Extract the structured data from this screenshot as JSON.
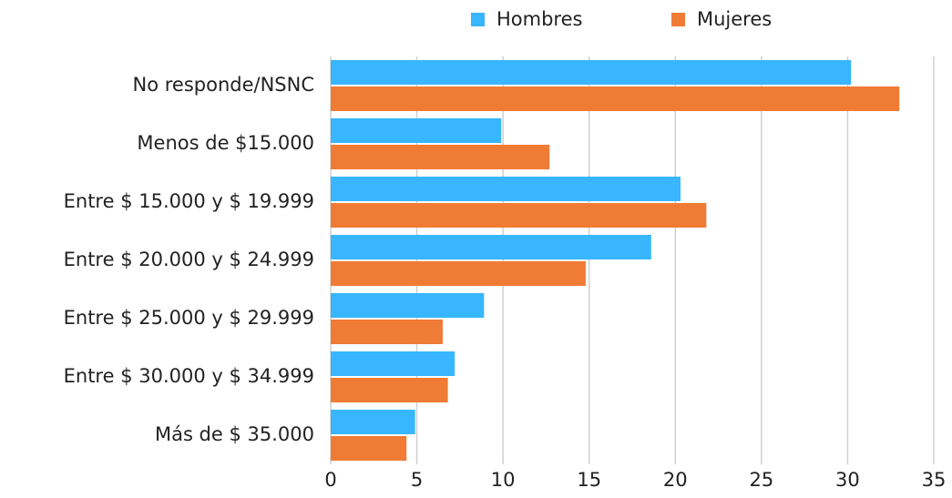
{
  "chart_data": {
    "type": "bar",
    "orientation": "horizontal",
    "categories": [
      "No responde/NSNC",
      "Menos de $15.000",
      "Entre $ 15.000 y $ 19.999",
      "Entre $ 20.000 y $ 24.999",
      "Entre $ 25.000 y $ 29.999",
      "Entre $ 30.000 y $ 34.999",
      "Más de $ 35.000"
    ],
    "series": [
      {
        "name": "Hombres",
        "color": "#38b6ff",
        "values": [
          30.2,
          9.9,
          20.3,
          18.6,
          8.9,
          7.2,
          4.9
        ]
      },
      {
        "name": "Mujeres",
        "color": "#f07b35",
        "values": [
          33.0,
          12.7,
          21.8,
          14.8,
          6.5,
          6.8,
          4.4
        ]
      }
    ],
    "xlim": [
      0,
      35
    ],
    "xticks": [
      0,
      5,
      10,
      15,
      20,
      25,
      30,
      35
    ],
    "grid": true,
    "legend": "top"
  }
}
